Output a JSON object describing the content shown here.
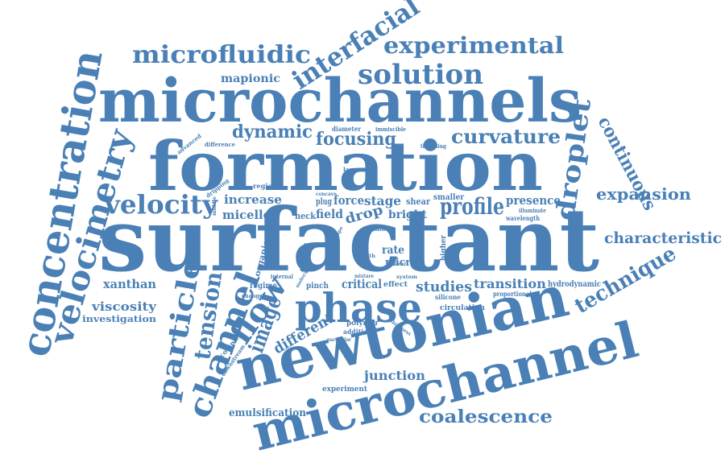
{
  "colors": {
    "word": "#4a80b6",
    "background": "#ffffff"
  },
  "words": [
    "surfactant",
    "formation",
    "microchannels",
    "newtonian",
    "microchannel",
    "phase",
    "concentration",
    "velocimetry",
    "channel",
    "particle",
    "flow",
    "droplet",
    "interfacial",
    "microfluidic",
    "experimental",
    "solution",
    "tension",
    "velocity",
    "technique",
    "continuous",
    "curvature",
    "expansion",
    "characteristic",
    "image",
    "profile",
    "focusing",
    "dynamic",
    "coalescence",
    "different",
    "mapionic",
    "viscosity",
    "xanthan",
    "investigation",
    "junction",
    "emulsification",
    "experiment",
    "studies",
    "transition",
    "critical",
    "increase",
    "micelle",
    "presence",
    "stage",
    "force",
    "field",
    "drop",
    "bright",
    "rate",
    "neck",
    "fluid",
    "micro",
    "shear",
    "smaller",
    "hydrodynamic",
    "regime",
    "pinch",
    "effect",
    "circulation",
    "polymer",
    "addition",
    "organic",
    "complex",
    "downstream",
    "change",
    "proportional",
    "silicone",
    "wavelength",
    "illuminate",
    "diameter",
    "immiscible",
    "threading",
    "advanced",
    "difference",
    "dripping",
    "region",
    "larger",
    "concave",
    "main",
    "plug",
    "middle",
    "internal",
    "system",
    "higher",
    "thickness",
    "particular",
    "colour",
    "mixture",
    "molecule",
    "width",
    "shape"
  ]
}
